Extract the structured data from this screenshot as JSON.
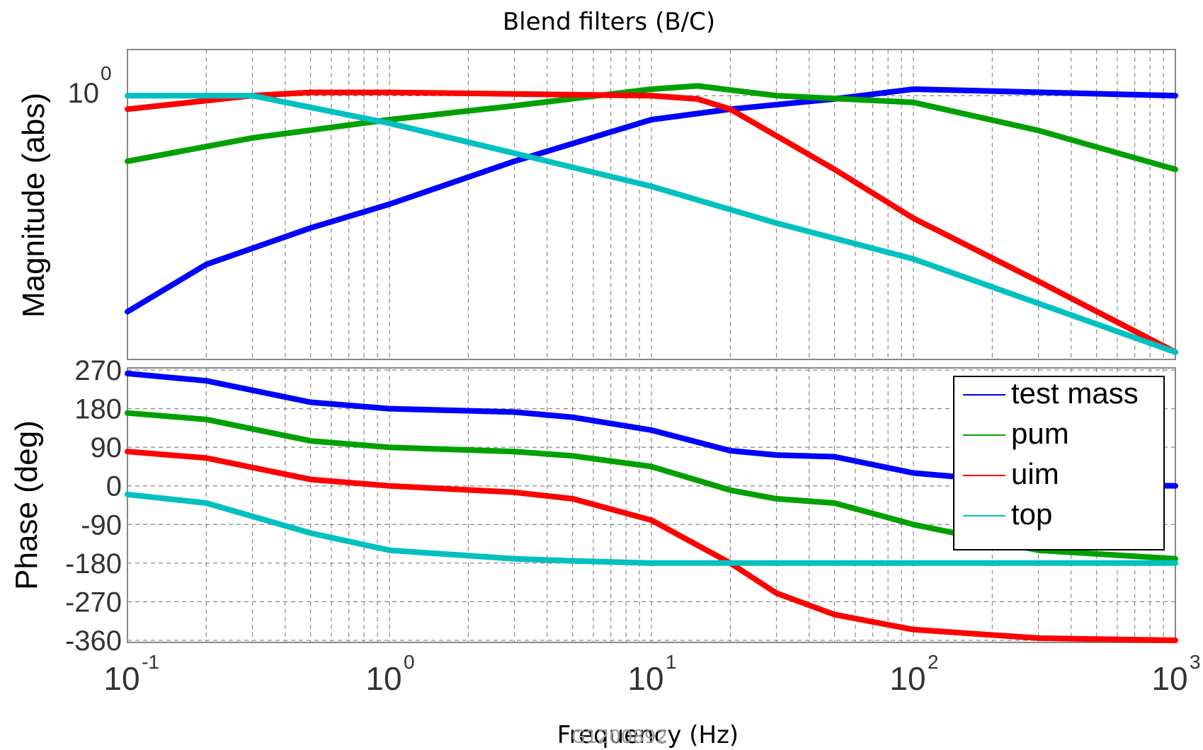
{
  "chart_data": [
    {
      "type": "line",
      "panel": "magnitude",
      "title": "Blend filters  (B/C)",
      "ylabel": "Magnitude (abs)",
      "xscale": "log",
      "xlim": [
        0.1,
        1000
      ],
      "yscale": "log",
      "ylim": [
        0.45,
        1.15
      ],
      "y_ticks": [
        {
          "value": 1,
          "base": "10",
          "exp": "0"
        }
      ],
      "grid": true,
      "series": [
        {
          "name": "test mass",
          "color": "#0000ff",
          "x": [
            0.1,
            0.2,
            0.5,
            1,
            3,
            10,
            20,
            50,
            100,
            1000
          ],
          "y": [
            0.52,
            0.6,
            0.67,
            0.72,
            0.82,
            0.93,
            0.96,
            0.99,
            1.02,
            1.0
          ]
        },
        {
          "name": "pum",
          "color": "#00a000",
          "x": [
            0.1,
            0.3,
            1,
            3,
            10,
            15,
            30,
            100,
            300,
            1000
          ],
          "y": [
            0.82,
            0.88,
            0.93,
            0.97,
            1.02,
            1.03,
            1.0,
            0.98,
            0.9,
            0.8
          ]
        },
        {
          "name": "uim",
          "color": "#ff0000",
          "x": [
            0.1,
            0.3,
            0.5,
            1,
            10,
            15,
            20,
            50,
            100,
            300,
            1000
          ],
          "y": [
            0.96,
            1.0,
            1.01,
            1.01,
            1.0,
            0.99,
            0.96,
            0.8,
            0.69,
            0.57,
            0.46
          ]
        },
        {
          "name": "top",
          "color": "#00c0c0",
          "x": [
            0.1,
            0.3,
            1,
            3,
            10,
            30,
            100,
            1000
          ],
          "y": [
            1.0,
            1.0,
            0.92,
            0.84,
            0.76,
            0.68,
            0.61,
            0.46
          ]
        }
      ]
    },
    {
      "type": "line",
      "panel": "phase",
      "xlabel": "Frequency (Hz)",
      "ylabel": "Phase (deg)",
      "xscale": "log",
      "xlim": [
        0.1,
        1000
      ],
      "ylim": [
        -365,
        275
      ],
      "y_ticks": [
        270,
        180,
        90,
        0,
        -90,
        -180,
        -270,
        -360
      ],
      "x_ticks": [
        {
          "value": 0.1,
          "base": "10",
          "exp": "-1"
        },
        {
          "value": 1,
          "base": "10",
          "exp": "0"
        },
        {
          "value": 10,
          "base": "10",
          "exp": "1"
        },
        {
          "value": 100,
          "base": "10",
          "exp": "2"
        },
        {
          "value": 1000,
          "base": "10",
          "exp": "3"
        }
      ],
      "grid": true,
      "legend": {
        "placement": "right",
        "entries": [
          "test mass",
          "pum",
          "uim",
          "top"
        ]
      },
      "series": [
        {
          "name": "test mass",
          "color": "#0000ff",
          "x": [
            0.1,
            0.2,
            0.5,
            1,
            3,
            5,
            10,
            20,
            30,
            50,
            100,
            300,
            1000
          ],
          "y": [
            262,
            245,
            195,
            180,
            172,
            160,
            130,
            82,
            72,
            68,
            30,
            5,
            0
          ]
        },
        {
          "name": "pum",
          "color": "#00a000",
          "x": [
            0.1,
            0.2,
            0.5,
            1,
            3,
            5,
            10,
            20,
            30,
            50,
            100,
            300,
            1000
          ],
          "y": [
            170,
            155,
            105,
            90,
            80,
            70,
            45,
            -10,
            -30,
            -40,
            -90,
            -150,
            -170
          ]
        },
        {
          "name": "uim",
          "color": "#ff0000",
          "x": [
            0.1,
            0.2,
            0.5,
            1,
            3,
            5,
            10,
            20,
            30,
            50,
            100,
            300,
            1000
          ],
          "y": [
            80,
            65,
            15,
            0,
            -15,
            -30,
            -80,
            -180,
            -250,
            -300,
            -335,
            -355,
            -360
          ]
        },
        {
          "name": "top",
          "color": "#00c0c0",
          "x": [
            0.1,
            0.2,
            0.5,
            1,
            3,
            5,
            10,
            100,
            1000
          ],
          "y": [
            -20,
            -40,
            -110,
            -150,
            -170,
            -175,
            -180,
            -180,
            -180
          ]
        }
      ]
    }
  ],
  "watermark": "G1200892"
}
